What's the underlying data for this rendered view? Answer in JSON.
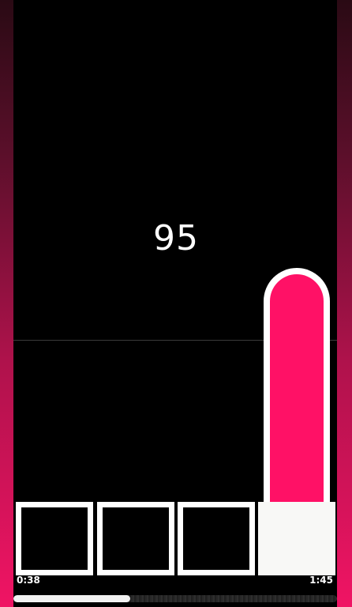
{
  "game": {
    "score": "95",
    "lanes": [
      {
        "id": 1,
        "pressed": false
      },
      {
        "id": 2,
        "pressed": false
      },
      {
        "id": 3,
        "pressed": false
      },
      {
        "id": 4,
        "pressed": true
      }
    ],
    "hold_note_lane": 4
  },
  "playback": {
    "elapsed": "0:38",
    "total": "1:45",
    "progress": 0.36
  },
  "colors": {
    "accent": "#ff1166",
    "tile_border": "#ffffff",
    "background": "#000000"
  }
}
